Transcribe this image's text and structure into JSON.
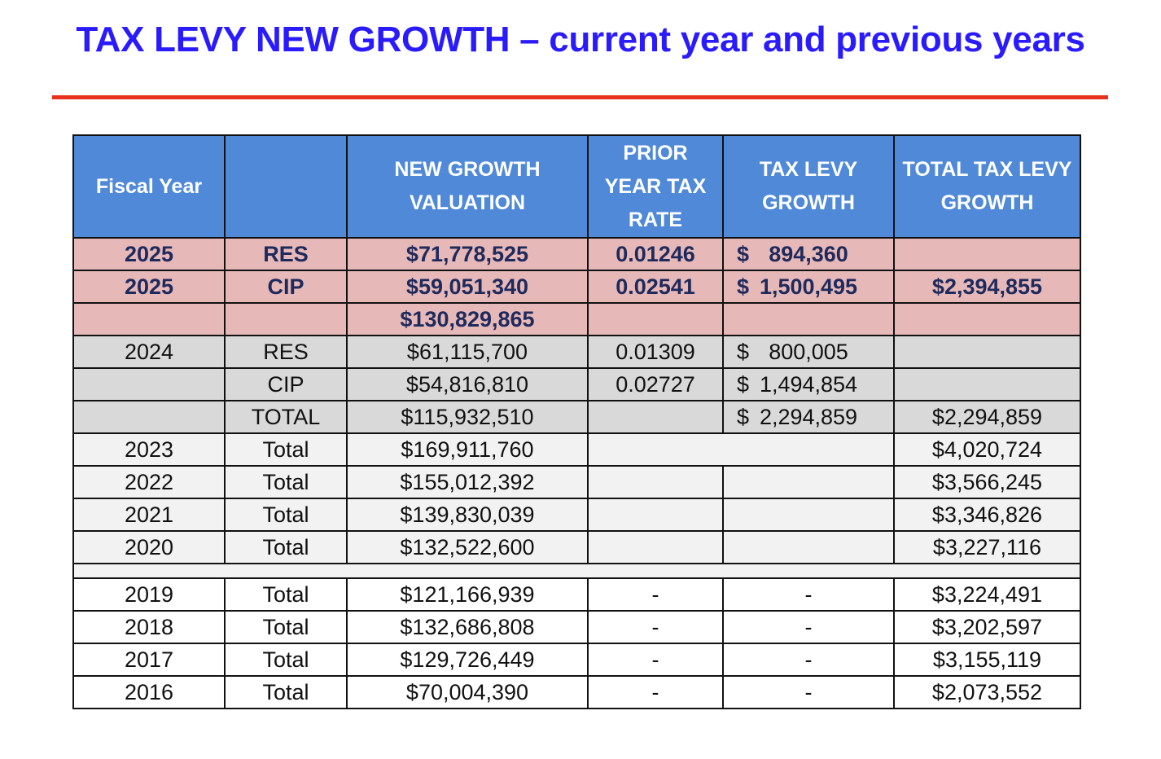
{
  "title": "TAX LEVY NEW GROWTH – current year and previous years",
  "table": {
    "headers": {
      "fiscal_year": "Fiscal Year",
      "type": "",
      "new_growth_valuation": "NEW GROWTH VALUATION",
      "prior_year_tax_rate": "PRIOR YEAR TAX RATE",
      "tax_levy_growth": "TAX LEVY GROWTH",
      "total_tax_levy_growth": "TOTAL TAX LEVY GROWTH"
    },
    "rows": [
      {
        "year": "2025",
        "type": "RES",
        "valuation": "$71,778,525",
        "rate": "0.01246",
        "levy_symbol": "$",
        "levy": "894,360",
        "total": ""
      },
      {
        "year": "2025",
        "type": "CIP",
        "valuation": "$59,051,340",
        "rate": "0.02541",
        "levy_symbol": "$",
        "levy": "1,500,495",
        "total": "$2,394,855"
      },
      {
        "year": "",
        "type": "",
        "valuation": "$130,829,865",
        "rate": "",
        "levy_symbol": "",
        "levy": "",
        "total": ""
      },
      {
        "year": "2024",
        "type": "RES",
        "valuation": "$61,115,700",
        "rate": "0.01309",
        "levy_symbol": "$",
        "levy": "800,005",
        "total": ""
      },
      {
        "year": "",
        "type": "CIP",
        "valuation": "$54,816,810",
        "rate": "0.02727",
        "levy_symbol": "$",
        "levy": "1,494,854",
        "total": ""
      },
      {
        "year": "",
        "type": "TOTAL",
        "valuation": "$115,932,510",
        "rate": "",
        "levy_symbol": "$",
        "levy": "2,294,859",
        "total": "$2,294,859"
      },
      {
        "year": "2023",
        "type": "Total",
        "valuation": "$169,911,760",
        "rate": "",
        "levy_symbol": "",
        "levy": "",
        "total": "$4,020,724"
      },
      {
        "year": "2022",
        "type": "Total",
        "valuation": "$155,012,392",
        "rate": "",
        "levy_symbol": "",
        "levy": "",
        "total": "$3,566,245"
      },
      {
        "year": "2021",
        "type": "Total",
        "valuation": "$139,830,039",
        "rate": "",
        "levy_symbol": "",
        "levy": "",
        "total": "$3,346,826"
      },
      {
        "year": "2020",
        "type": "Total",
        "valuation": "$132,522,600",
        "rate": "",
        "levy_symbol": "",
        "levy": "",
        "total": "$3,227,116"
      },
      {
        "year": "2019",
        "type": "Total",
        "valuation": "$121,166,939",
        "rate": "-",
        "levy_symbol": "",
        "levy": "-",
        "total": "$3,224,491"
      },
      {
        "year": "2018",
        "type": "Total",
        "valuation": "$132,686,808",
        "rate": "-",
        "levy_symbol": "",
        "levy": "-",
        "total": "$3,202,597"
      },
      {
        "year": "2017",
        "type": "Total",
        "valuation": "$129,726,449",
        "rate": "-",
        "levy_symbol": "",
        "levy": "-",
        "total": "$3,155,119"
      },
      {
        "year": "2016",
        "type": "Total",
        "valuation": "$70,004,390",
        "rate": "-",
        "levy_symbol": "",
        "levy": "-",
        "total": "$2,073,552"
      }
    ]
  },
  "colors": {
    "title": "#2a1bff",
    "rule": "#e8321c",
    "header_bg": "#4f89d8",
    "current_year_bg": "#e6b8b8",
    "prior_year_bg": "#d9d9d9",
    "history_bg": "#f2f2f2"
  }
}
